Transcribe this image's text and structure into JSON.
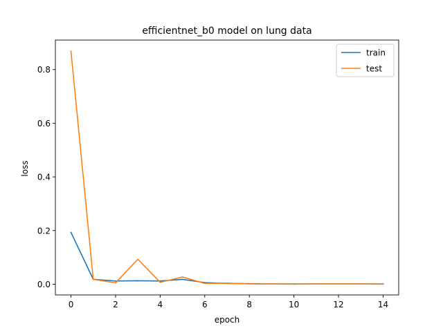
{
  "chart_data": {
    "type": "line",
    "title": "efficientnet_b0 model on lung data",
    "xlabel": "epoch",
    "ylabel": "loss",
    "xlim": [
      -0.7,
      14.7
    ],
    "ylim": [
      -0.04,
      0.91
    ],
    "x_ticks": [
      0,
      2,
      4,
      6,
      8,
      10,
      12,
      14
    ],
    "y_ticks": [
      0.0,
      0.2,
      0.4,
      0.6,
      0.8
    ],
    "x_tick_labels": [
      "0",
      "2",
      "4",
      "6",
      "8",
      "10",
      "12",
      "14"
    ],
    "y_tick_labels": [
      "0.0",
      "0.2",
      "0.4",
      "0.6",
      "0.8"
    ],
    "grid": false,
    "legend_position": "top-right",
    "x": [
      0,
      1,
      2,
      3,
      4,
      5,
      6,
      7,
      8,
      9,
      10,
      11,
      12,
      13,
      14
    ],
    "series": [
      {
        "name": "train",
        "color": "#1f77b4",
        "values": [
          0.193,
          0.018,
          0.012,
          0.013,
          0.012,
          0.018,
          0.006,
          0.003,
          0.002,
          0.001,
          0.001,
          0.001,
          0.001,
          0.001,
          0.001
        ]
      },
      {
        "name": "test",
        "color": "#ff7f0e",
        "values": [
          0.868,
          0.018,
          0.005,
          0.093,
          0.007,
          0.027,
          0.003,
          0.004,
          0.001,
          0.001,
          0.0,
          0.001,
          0.001,
          0.001,
          0.0
        ]
      }
    ]
  }
}
